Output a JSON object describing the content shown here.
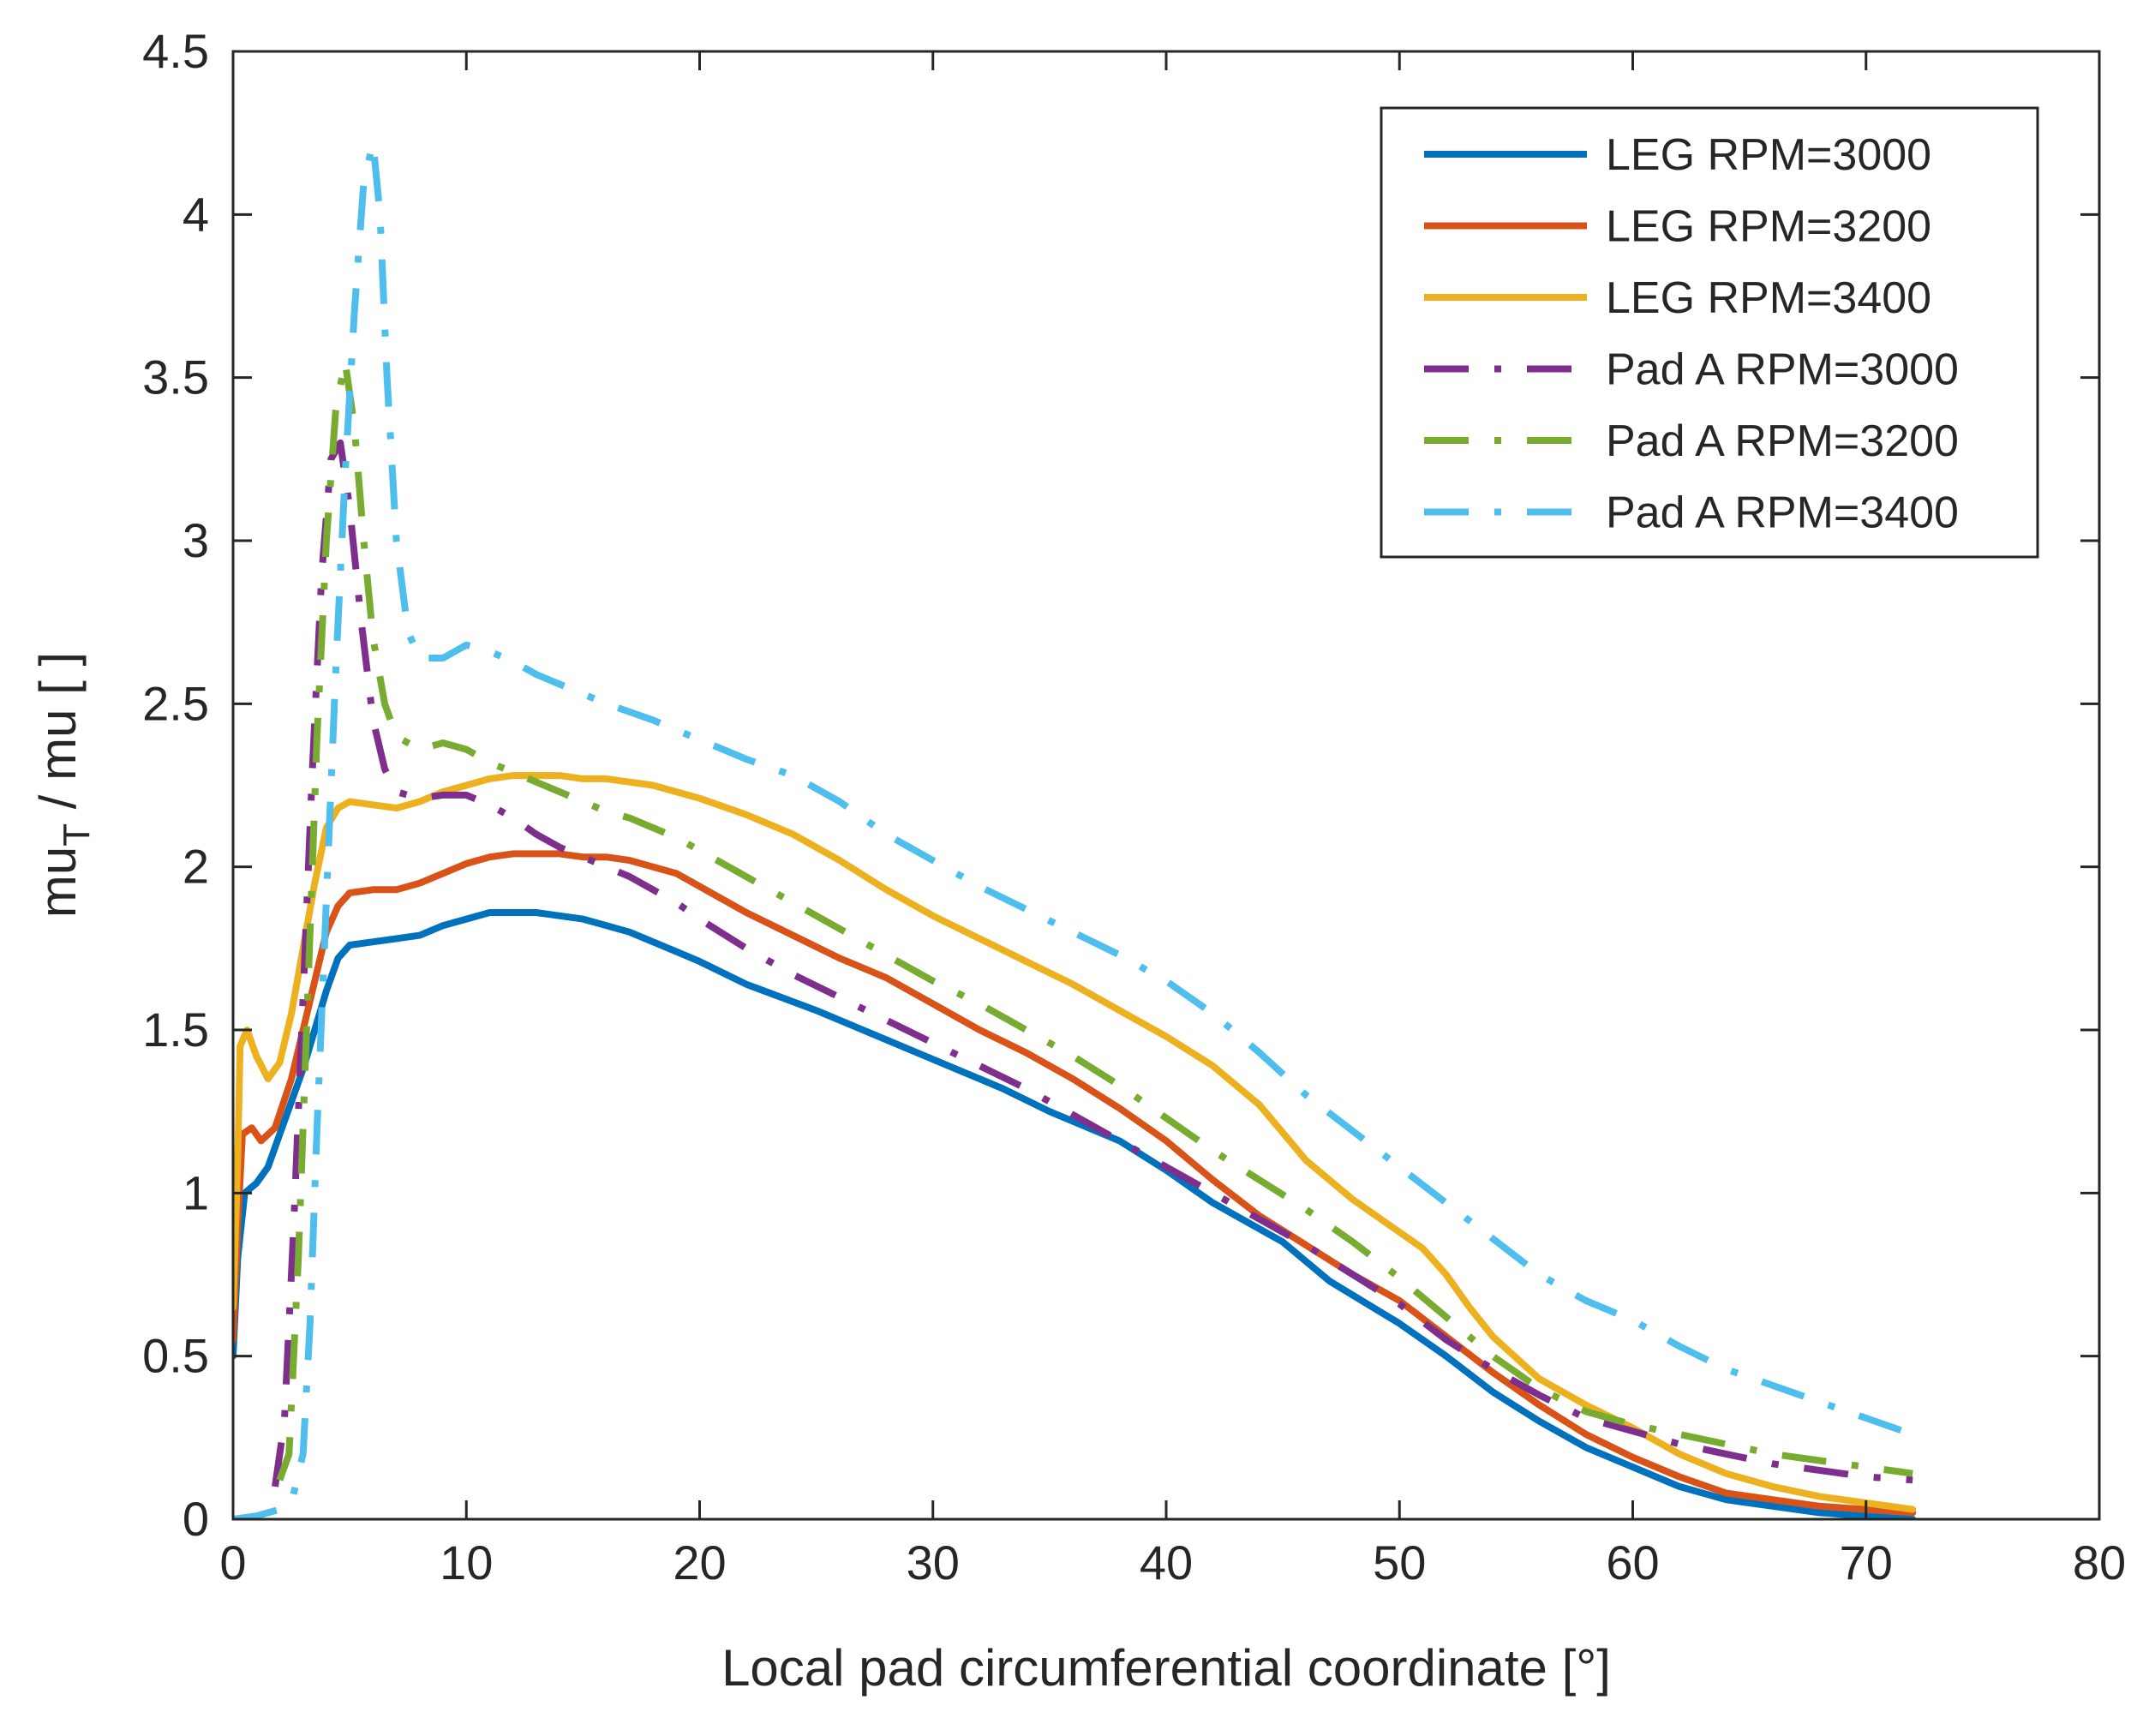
{
  "chart_data": {
    "type": "line",
    "title": "",
    "xlabel": "Local pad circumferential coordinate [°]",
    "ylabel_main": "mu",
    "ylabel_sub": "T",
    "ylabel_rest": " / mu [ ]",
    "xlim": [
      0,
      80
    ],
    "ylim": [
      0,
      4.5
    ],
    "xticks": [
      0,
      10,
      20,
      30,
      40,
      50,
      60,
      70,
      80
    ],
    "xtick_labels": [
      "0",
      "10",
      "20",
      "30",
      "40",
      "50",
      "60",
      "70",
      "80"
    ],
    "yticks": [
      0,
      0.5,
      1,
      1.5,
      2,
      2.5,
      3,
      3.5,
      4,
      4.5
    ],
    "ytick_labels": [
      "0",
      "0.5",
      "1",
      "1.5",
      "2",
      "2.5",
      "3",
      "3.5",
      "4",
      "4.5"
    ],
    "grid": false,
    "legend_position": "top-right",
    "series": [
      {
        "name": "LEG RPM=3000",
        "color": "#0072BD",
        "style": "solid",
        "points": [
          [
            0,
            0.5
          ],
          [
            0.2,
            0.8
          ],
          [
            0.5,
            1.0
          ],
          [
            1,
            1.03
          ],
          [
            1.5,
            1.08
          ],
          [
            2,
            1.18
          ],
          [
            3,
            1.38
          ],
          [
            4,
            1.62
          ],
          [
            4.5,
            1.72
          ],
          [
            5,
            1.76
          ],
          [
            6,
            1.77
          ],
          [
            7,
            1.78
          ],
          [
            8,
            1.79
          ],
          [
            9,
            1.82
          ],
          [
            10,
            1.84
          ],
          [
            11,
            1.86
          ],
          [
            12,
            1.86
          ],
          [
            13,
            1.86
          ],
          [
            14,
            1.85
          ],
          [
            15,
            1.84
          ],
          [
            16,
            1.82
          ],
          [
            17,
            1.8
          ],
          [
            18,
            1.77
          ],
          [
            19,
            1.74
          ],
          [
            20,
            1.71
          ],
          [
            22,
            1.64
          ],
          [
            25,
            1.56
          ],
          [
            28,
            1.47
          ],
          [
            30,
            1.41
          ],
          [
            33,
            1.32
          ],
          [
            35,
            1.25
          ],
          [
            38,
            1.16
          ],
          [
            40,
            1.07
          ],
          [
            42,
            0.97
          ],
          [
            44,
            0.89
          ],
          [
            45,
            0.85
          ],
          [
            47,
            0.73
          ],
          [
            50,
            0.6
          ],
          [
            52,
            0.5
          ],
          [
            54,
            0.39
          ],
          [
            56,
            0.3
          ],
          [
            58,
            0.22
          ],
          [
            60,
            0.16
          ],
          [
            62,
            0.1
          ],
          [
            64,
            0.06
          ],
          [
            66,
            0.04
          ],
          [
            68,
            0.02
          ],
          [
            70,
            0.01
          ],
          [
            72,
            0.0
          ]
        ]
      },
      {
        "name": "LEG RPM=3200",
        "color": "#D95319",
        "style": "solid",
        "points": [
          [
            0,
            0.55
          ],
          [
            0.2,
            0.9
          ],
          [
            0.4,
            1.18
          ],
          [
            0.8,
            1.2
          ],
          [
            1.2,
            1.16
          ],
          [
            1.8,
            1.2
          ],
          [
            2.5,
            1.35
          ],
          [
            3,
            1.5
          ],
          [
            3.5,
            1.65
          ],
          [
            4,
            1.8
          ],
          [
            4.5,
            1.88
          ],
          [
            5,
            1.92
          ],
          [
            6,
            1.93
          ],
          [
            7,
            1.93
          ],
          [
            8,
            1.95
          ],
          [
            9,
            1.98
          ],
          [
            10,
            2.01
          ],
          [
            11,
            2.03
          ],
          [
            12,
            2.04
          ],
          [
            13,
            2.04
          ],
          [
            14,
            2.04
          ],
          [
            15,
            2.03
          ],
          [
            16,
            2.03
          ],
          [
            17,
            2.02
          ],
          [
            18,
            2.0
          ],
          [
            19,
            1.98
          ],
          [
            20,
            1.94
          ],
          [
            22,
            1.86
          ],
          [
            24,
            1.79
          ],
          [
            26,
            1.72
          ],
          [
            28,
            1.66
          ],
          [
            30,
            1.58
          ],
          [
            32,
            1.5
          ],
          [
            34,
            1.43
          ],
          [
            36,
            1.35
          ],
          [
            38,
            1.26
          ],
          [
            40,
            1.16
          ],
          [
            42,
            1.04
          ],
          [
            44,
            0.93
          ],
          [
            46,
            0.84
          ],
          [
            48,
            0.75
          ],
          [
            50,
            0.67
          ],
          [
            52,
            0.56
          ],
          [
            54,
            0.45
          ],
          [
            56,
            0.35
          ],
          [
            58,
            0.26
          ],
          [
            60,
            0.19
          ],
          [
            62,
            0.13
          ],
          [
            64,
            0.08
          ],
          [
            66,
            0.06
          ],
          [
            68,
            0.04
          ],
          [
            70,
            0.03
          ],
          [
            72,
            0.02
          ]
        ]
      },
      {
        "name": "LEG RPM=3400",
        "color": "#EDB120",
        "style": "solid",
        "points": [
          [
            0,
            0.65
          ],
          [
            0.2,
            1.1
          ],
          [
            0.3,
            1.45
          ],
          [
            0.6,
            1.5
          ],
          [
            1,
            1.42
          ],
          [
            1.5,
            1.35
          ],
          [
            2,
            1.4
          ],
          [
            2.5,
            1.55
          ],
          [
            3,
            1.75
          ],
          [
            3.5,
            1.95
          ],
          [
            4,
            2.12
          ],
          [
            4.5,
            2.18
          ],
          [
            5,
            2.2
          ],
          [
            6,
            2.19
          ],
          [
            7,
            2.18
          ],
          [
            8,
            2.2
          ],
          [
            9,
            2.23
          ],
          [
            10,
            2.25
          ],
          [
            11,
            2.27
          ],
          [
            12,
            2.28
          ],
          [
            13,
            2.28
          ],
          [
            14,
            2.28
          ],
          [
            15,
            2.27
          ],
          [
            16,
            2.27
          ],
          [
            17,
            2.26
          ],
          [
            18,
            2.25
          ],
          [
            19,
            2.23
          ],
          [
            20,
            2.21
          ],
          [
            22,
            2.16
          ],
          [
            24,
            2.1
          ],
          [
            26,
            2.02
          ],
          [
            28,
            1.93
          ],
          [
            30,
            1.85
          ],
          [
            32,
            1.78
          ],
          [
            34,
            1.71
          ],
          [
            36,
            1.64
          ],
          [
            38,
            1.56
          ],
          [
            40,
            1.48
          ],
          [
            42,
            1.39
          ],
          [
            44,
            1.27
          ],
          [
            46,
            1.1
          ],
          [
            48,
            0.98
          ],
          [
            50,
            0.88
          ],
          [
            51,
            0.83
          ],
          [
            52,
            0.75
          ],
          [
            53,
            0.65
          ],
          [
            54,
            0.56
          ],
          [
            56,
            0.43
          ],
          [
            58,
            0.35
          ],
          [
            60,
            0.28
          ],
          [
            62,
            0.2
          ],
          [
            64,
            0.14
          ],
          [
            66,
            0.1
          ],
          [
            68,
            0.07
          ],
          [
            70,
            0.05
          ],
          [
            72,
            0.03
          ]
        ]
      },
      {
        "name": "Pad A RPM=3000",
        "color": "#7E2F8E",
        "style": "dashed",
        "points": [
          [
            1.8,
            0.1
          ],
          [
            2.2,
            0.3
          ],
          [
            2.6,
            0.9
          ],
          [
            3,
            1.6
          ],
          [
            3.4,
            2.3
          ],
          [
            3.8,
            2.9
          ],
          [
            4.2,
            3.25
          ],
          [
            4.6,
            3.3
          ],
          [
            5,
            3.1
          ],
          [
            5.5,
            2.75
          ],
          [
            6,
            2.45
          ],
          [
            6.5,
            2.3
          ],
          [
            7,
            2.23
          ],
          [
            8,
            2.21
          ],
          [
            9,
            2.22
          ],
          [
            10,
            2.22
          ],
          [
            11,
            2.19
          ],
          [
            12,
            2.15
          ],
          [
            13,
            2.1
          ],
          [
            14,
            2.06
          ],
          [
            15,
            2.03
          ],
          [
            16,
            2.0
          ],
          [
            17,
            1.97
          ],
          [
            18,
            1.93
          ],
          [
            19,
            1.89
          ],
          [
            20,
            1.84
          ],
          [
            22,
            1.75
          ],
          [
            24,
            1.67
          ],
          [
            26,
            1.6
          ],
          [
            28,
            1.53
          ],
          [
            30,
            1.46
          ],
          [
            32,
            1.39
          ],
          [
            34,
            1.32
          ],
          [
            36,
            1.24
          ],
          [
            38,
            1.16
          ],
          [
            40,
            1.08
          ],
          [
            42,
            1.0
          ],
          [
            44,
            0.92
          ],
          [
            46,
            0.84
          ],
          [
            48,
            0.75
          ],
          [
            50,
            0.66
          ],
          [
            52,
            0.55
          ],
          [
            54,
            0.46
          ],
          [
            56,
            0.38
          ],
          [
            58,
            0.31
          ],
          [
            60,
            0.27
          ],
          [
            62,
            0.23
          ],
          [
            64,
            0.2
          ],
          [
            66,
            0.17
          ],
          [
            68,
            0.15
          ],
          [
            70,
            0.13
          ],
          [
            72,
            0.12
          ]
        ]
      },
      {
        "name": "Pad A RPM=3200",
        "color": "#77AC30",
        "style": "dashed",
        "points": [
          [
            2,
            0.12
          ],
          [
            2.4,
            0.2
          ],
          [
            2.8,
            0.8
          ],
          [
            3.2,
            1.6
          ],
          [
            3.6,
            2.4
          ],
          [
            4,
            3.0
          ],
          [
            4.4,
            3.4
          ],
          [
            4.8,
            3.55
          ],
          [
            5.2,
            3.35
          ],
          [
            5.6,
            3.0
          ],
          [
            6,
            2.7
          ],
          [
            6.5,
            2.5
          ],
          [
            7,
            2.4
          ],
          [
            8,
            2.36
          ],
          [
            9,
            2.38
          ],
          [
            10,
            2.36
          ],
          [
            11,
            2.32
          ],
          [
            12,
            2.29
          ],
          [
            13,
            2.26
          ],
          [
            14,
            2.23
          ],
          [
            15,
            2.2
          ],
          [
            16,
            2.17
          ],
          [
            17,
            2.15
          ],
          [
            18,
            2.12
          ],
          [
            19,
            2.09
          ],
          [
            20,
            2.05
          ],
          [
            22,
            1.97
          ],
          [
            24,
            1.89
          ],
          [
            26,
            1.81
          ],
          [
            28,
            1.73
          ],
          [
            30,
            1.65
          ],
          [
            32,
            1.58
          ],
          [
            34,
            1.5
          ],
          [
            36,
            1.42
          ],
          [
            38,
            1.33
          ],
          [
            40,
            1.23
          ],
          [
            42,
            1.13
          ],
          [
            44,
            1.04
          ],
          [
            46,
            0.95
          ],
          [
            48,
            0.85
          ],
          [
            50,
            0.74
          ],
          [
            52,
            0.62
          ],
          [
            54,
            0.5
          ],
          [
            56,
            0.4
          ],
          [
            58,
            0.33
          ],
          [
            60,
            0.29
          ],
          [
            62,
            0.26
          ],
          [
            64,
            0.23
          ],
          [
            66,
            0.2
          ],
          [
            68,
            0.18
          ],
          [
            70,
            0.16
          ],
          [
            72,
            0.14
          ]
        ]
      },
      {
        "name": "Pad A RPM=3400",
        "color": "#4DBEEE",
        "style": "dashed",
        "points": [
          [
            0,
            0.0
          ],
          [
            1,
            0.01
          ],
          [
            2,
            0.03
          ],
          [
            2.5,
            0.05
          ],
          [
            3,
            0.2
          ],
          [
            3.3,
            0.6
          ],
          [
            3.6,
            1.2
          ],
          [
            4,
            1.9
          ],
          [
            4.4,
            2.6
          ],
          [
            4.8,
            3.2
          ],
          [
            5.2,
            3.7
          ],
          [
            5.6,
            4.1
          ],
          [
            6,
            4.22
          ],
          [
            6.3,
            4.0
          ],
          [
            6.6,
            3.5
          ],
          [
            7,
            3.0
          ],
          [
            7.5,
            2.72
          ],
          [
            8,
            2.64
          ],
          [
            9,
            2.64
          ],
          [
            10,
            2.68
          ],
          [
            11,
            2.66
          ],
          [
            12,
            2.63
          ],
          [
            13,
            2.59
          ],
          [
            14,
            2.56
          ],
          [
            15,
            2.53
          ],
          [
            16,
            2.5
          ],
          [
            18,
            2.45
          ],
          [
            20,
            2.39
          ],
          [
            22,
            2.33
          ],
          [
            24,
            2.28
          ],
          [
            26,
            2.2
          ],
          [
            28,
            2.1
          ],
          [
            30,
            2.02
          ],
          [
            32,
            1.94
          ],
          [
            34,
            1.87
          ],
          [
            36,
            1.8
          ],
          [
            38,
            1.73
          ],
          [
            40,
            1.65
          ],
          [
            42,
            1.55
          ],
          [
            44,
            1.43
          ],
          [
            46,
            1.3
          ],
          [
            48,
            1.19
          ],
          [
            50,
            1.08
          ],
          [
            52,
            0.97
          ],
          [
            54,
            0.86
          ],
          [
            56,
            0.75
          ],
          [
            58,
            0.67
          ],
          [
            60,
            0.61
          ],
          [
            62,
            0.53
          ],
          [
            64,
            0.46
          ],
          [
            66,
            0.41
          ],
          [
            68,
            0.36
          ],
          [
            70,
            0.31
          ],
          [
            72,
            0.26
          ]
        ]
      }
    ]
  }
}
